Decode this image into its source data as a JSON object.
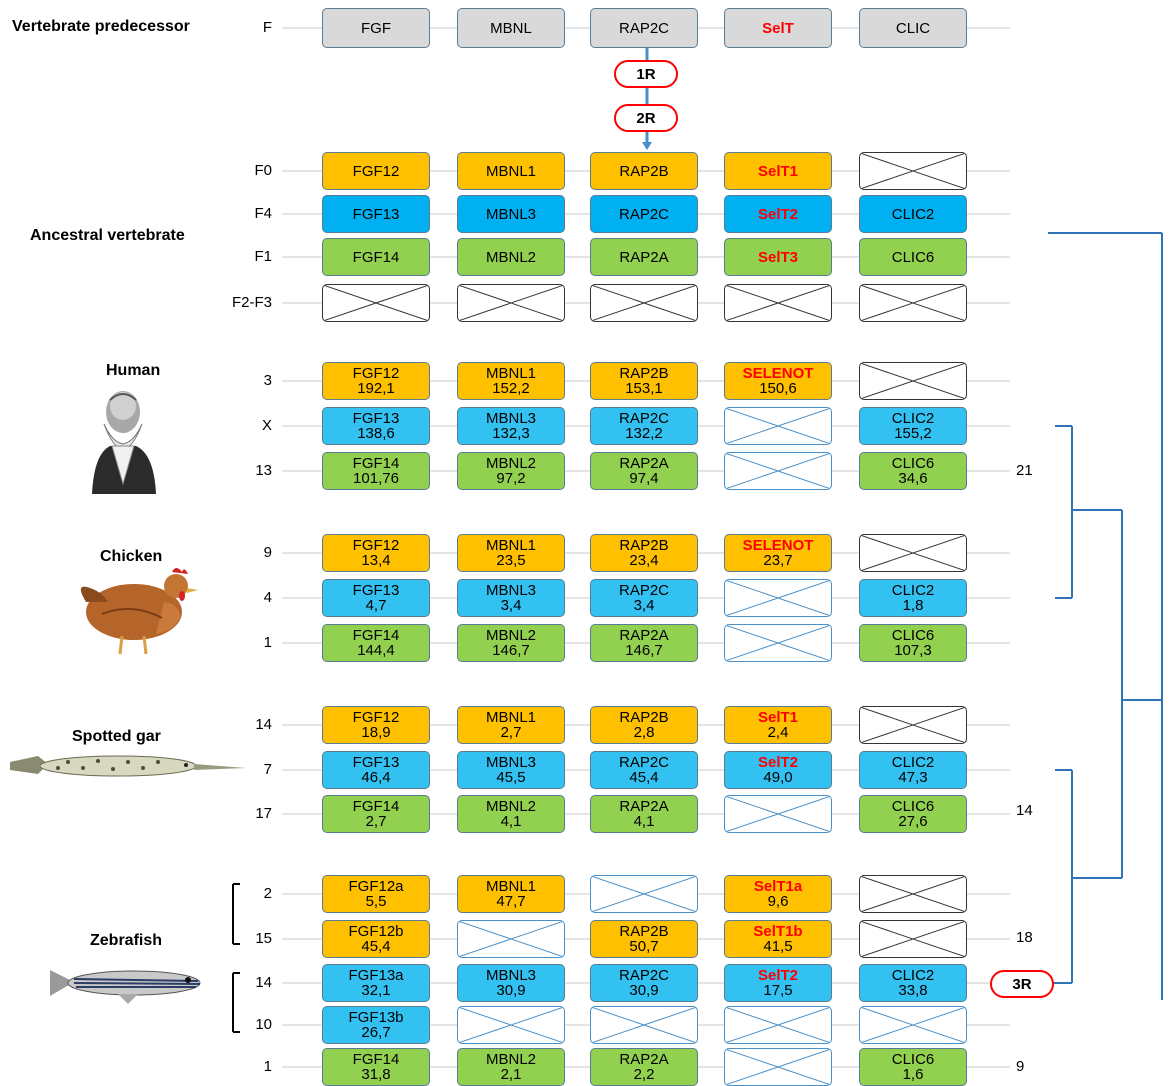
{
  "species": {
    "predecessor": "Vertebrate predecessor",
    "ancestral": "Ancestral vertebrate",
    "human": "Human",
    "chicken": "Chicken",
    "gar": "Spotted gar",
    "zebrafish": "Zebrafish"
  },
  "events": {
    "r1": "1R",
    "r2": "2R",
    "r3": "3R"
  },
  "counts": {
    "human": "21",
    "gar": "14",
    "zebrafish_a": "18",
    "zebrafish_b": "9"
  },
  "colors": {
    "gray": "#d9d9d9",
    "orange": "#ffc000",
    "blue": "#00b0f0",
    "light_blue": "#33c1f2",
    "green": "#92d050",
    "tree": "#2e75b6",
    "red": "#ff0000"
  },
  "rows": [
    {
      "label": "F",
      "cells": [
        {
          "n": "FGF",
          "c": "g"
        },
        {
          "n": "MBNL",
          "c": "g"
        },
        {
          "n": "RAP2C",
          "c": "g"
        },
        {
          "n": "SelT",
          "c": "g",
          "red": true
        },
        {
          "n": "CLIC",
          "c": "g"
        }
      ]
    },
    {
      "label": "F0",
      "cells": [
        {
          "n": "FGF12",
          "c": "o"
        },
        {
          "n": "MBNL1",
          "c": "o"
        },
        {
          "n": "RAP2B",
          "c": "o"
        },
        {
          "n": "SelT1",
          "c": "o",
          "red": true
        },
        {
          "e": "dark"
        }
      ]
    },
    {
      "label": "F4",
      "cells": [
        {
          "n": "FGF13",
          "c": "b"
        },
        {
          "n": "MBNL3",
          "c": "b"
        },
        {
          "n": "RAP2C",
          "c": "b"
        },
        {
          "n": "SelT2",
          "c": "b",
          "red": true
        },
        {
          "n": "CLIC2",
          "c": "b"
        }
      ]
    },
    {
      "label": "F1",
      "cells": [
        {
          "n": "FGF14",
          "c": "gr"
        },
        {
          "n": "MBNL2",
          "c": "gr"
        },
        {
          "n": "RAP2A",
          "c": "gr"
        },
        {
          "n": "SelT3",
          "c": "gr",
          "red": true
        },
        {
          "n": "CLIC6",
          "c": "gr"
        }
      ]
    },
    {
      "label": "F2-F3",
      "cells": [
        {
          "e": "dark"
        },
        {
          "e": "dark"
        },
        {
          "e": "dark"
        },
        {
          "e": "dark"
        },
        {
          "e": "dark"
        }
      ]
    },
    {
      "label": "3",
      "cells": [
        {
          "n": "FGF12",
          "v": "192,1",
          "c": "o"
        },
        {
          "n": "MBNL1",
          "v": "152,2",
          "c": "o"
        },
        {
          "n": "RAP2B",
          "v": "153,1",
          "c": "o"
        },
        {
          "n": "SELENOT",
          "v": "150,6",
          "c": "o",
          "red": true
        },
        {
          "e": "dark"
        }
      ]
    },
    {
      "label": "X",
      "cells": [
        {
          "n": "FGF13",
          "v": "138,6",
          "c": "lb"
        },
        {
          "n": "MBNL3",
          "v": "132,3",
          "c": "lb"
        },
        {
          "n": "RAP2C",
          "v": "132,2",
          "c": "lb"
        },
        {
          "e": "blue"
        },
        {
          "n": "CLIC2",
          "v": "155,2",
          "c": "lb"
        }
      ]
    },
    {
      "label": "13",
      "cells": [
        {
          "n": "FGF14",
          "v": "101,76",
          "c": "gr"
        },
        {
          "n": "MBNL2",
          "v": "97,2",
          "c": "gr"
        },
        {
          "n": "RAP2A",
          "v": "97,4",
          "c": "gr"
        },
        {
          "e": "blue"
        },
        {
          "n": "CLIC6",
          "v": "34,6",
          "c": "gr"
        }
      ]
    },
    {
      "label": "9",
      "cells": [
        {
          "n": "FGF12",
          "v": "13,4",
          "c": "o"
        },
        {
          "n": "MBNL1",
          "v": "23,5",
          "c": "o"
        },
        {
          "n": "RAP2B",
          "v": "23,4",
          "c": "o"
        },
        {
          "n": "SELENOT",
          "v": "23,7",
          "c": "o",
          "red": true
        },
        {
          "e": "dark"
        }
      ]
    },
    {
      "label": "4",
      "cells": [
        {
          "n": "FGF13",
          "v": "4,7",
          "c": "lb"
        },
        {
          "n": "MBNL3",
          "v": "3,4",
          "c": "lb"
        },
        {
          "n": "RAP2C",
          "v": "3,4",
          "c": "lb"
        },
        {
          "e": "blue"
        },
        {
          "n": "CLIC2",
          "v": "1,8",
          "c": "lb"
        }
      ]
    },
    {
      "label": "1",
      "cells": [
        {
          "n": "FGF14",
          "v": "144,4",
          "c": "gr"
        },
        {
          "n": "MBNL2",
          "v": "146,7",
          "c": "gr"
        },
        {
          "n": "RAP2A",
          "v": "146,7",
          "c": "gr"
        },
        {
          "e": "blue"
        },
        {
          "n": "CLIC6",
          "v": "107,3",
          "c": "gr"
        }
      ]
    },
    {
      "label": "14",
      "cells": [
        {
          "n": "FGF12",
          "v": "18,9",
          "c": "o"
        },
        {
          "n": "MBNL1",
          "v": "2,7",
          "c": "o"
        },
        {
          "n": "RAP2B",
          "v": "2,8",
          "c": "o"
        },
        {
          "n": "SelT1",
          "v": "2,4",
          "c": "o",
          "red": true
        },
        {
          "e": "dark"
        }
      ]
    },
    {
      "label": "7",
      "cells": [
        {
          "n": "FGF13",
          "v": "46,4",
          "c": "lb"
        },
        {
          "n": "MBNL3",
          "v": "45,5",
          "c": "lb"
        },
        {
          "n": "RAP2C",
          "v": "45,4",
          "c": "lb"
        },
        {
          "n": "SelT2",
          "v": "49,0",
          "c": "lb",
          "red": true
        },
        {
          "n": "CLIC2",
          "v": "47,3",
          "c": "lb"
        }
      ]
    },
    {
      "label": "17",
      "cells": [
        {
          "n": "FGF14",
          "v": "2,7",
          "c": "gr"
        },
        {
          "n": "MBNL2",
          "v": "4,1",
          "c": "gr"
        },
        {
          "n": "RAP2A",
          "v": "4,1",
          "c": "gr"
        },
        {
          "e": "blue"
        },
        {
          "n": "CLIC6",
          "v": "27,6",
          "c": "gr"
        }
      ]
    },
    {
      "label": "2",
      "cells": [
        {
          "n": "FGF12a",
          "v": "5,5",
          "c": "o"
        },
        {
          "n": "MBNL1",
          "v": "47,7",
          "c": "o"
        },
        {
          "e": "blue"
        },
        {
          "n": "SelT1a",
          "v": "9,6",
          "c": "o",
          "red": true
        },
        {
          "e": "dark"
        }
      ]
    },
    {
      "label": "15",
      "cells": [
        {
          "n": "FGF12b",
          "v": "45,4",
          "c": "o"
        },
        {
          "e": "blue"
        },
        {
          "n": "RAP2B",
          "v": "50,7",
          "c": "o"
        },
        {
          "n": "SelT1b",
          "v": "41,5",
          "c": "o",
          "red": true
        },
        {
          "e": "dark"
        }
      ]
    },
    {
      "label": "14",
      "cells": [
        {
          "n": "FGF13a",
          "v": "32,1",
          "c": "lb"
        },
        {
          "n": "MBNL3",
          "v": "30,9",
          "c": "lb"
        },
        {
          "n": "RAP2C",
          "v": "30,9",
          "c": "lb"
        },
        {
          "n": "SelT2",
          "v": "17,5",
          "c": "lb",
          "red": true
        },
        {
          "n": "CLIC2",
          "v": "33,8",
          "c": "lb"
        }
      ]
    },
    {
      "label": "10",
      "cells": [
        {
          "n": "FGF13b",
          "v": "26,7",
          "c": "lb"
        },
        {
          "e": "blue"
        },
        {
          "e": "blue"
        },
        {
          "e": "blue"
        },
        {
          "e": "blue"
        }
      ]
    },
    {
      "label": "1",
      "cells": [
        {
          "n": "FGF14",
          "v": "31,8",
          "c": "gr"
        },
        {
          "n": "MBNL2",
          "v": "2,1",
          "c": "gr"
        },
        {
          "n": "RAP2A",
          "v": "2,2",
          "c": "gr"
        },
        {
          "e": "blue"
        },
        {
          "n": "CLIC6",
          "v": "1,6",
          "c": "gr"
        }
      ]
    }
  ]
}
